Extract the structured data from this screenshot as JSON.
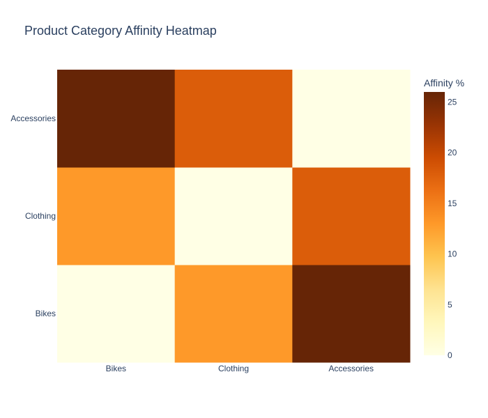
{
  "chart_data": {
    "type": "heatmap",
    "title": "Product Category Affinity Heatmap",
    "x_categories": [
      "Bikes",
      "Clothing",
      "Accessories"
    ],
    "y_categories": [
      "Bikes",
      "Clothing",
      "Accessories"
    ],
    "z": [
      [
        0,
        13,
        26
      ],
      [
        13,
        0,
        18
      ],
      [
        26,
        18,
        0
      ]
    ],
    "colorbar": {
      "title": "Affinity %",
      "range": [
        0,
        26
      ],
      "ticks": [
        0,
        5,
        10,
        15,
        20,
        25
      ]
    },
    "colorscale": [
      [
        0.0,
        "#ffffe5"
      ],
      [
        0.125,
        "#fff7bc"
      ],
      [
        0.25,
        "#fee391"
      ],
      [
        0.375,
        "#fec44f"
      ],
      [
        0.5,
        "#fe9929"
      ],
      [
        0.625,
        "#ec7014"
      ],
      [
        0.75,
        "#cc4c02"
      ],
      [
        0.875,
        "#993404"
      ],
      [
        1.0,
        "#662506"
      ]
    ]
  }
}
